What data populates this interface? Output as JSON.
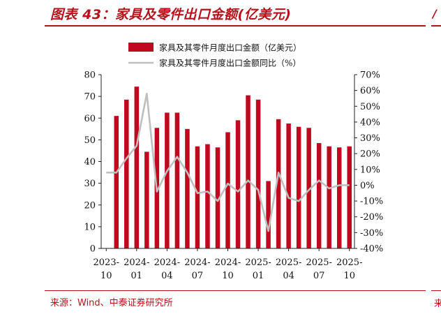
{
  "header": {
    "title": "图表 43：家具及零件出口金额(亿美元)"
  },
  "footer": {
    "source": "来源：Wind、中泰证券研究所"
  },
  "colors": {
    "bar": "#c0081e",
    "line": "#bfbfbf",
    "accent": "#b5121b"
  },
  "chart_data": {
    "type": "bar",
    "title": "图表 43：家具及零件出口金额(亿美元)",
    "legend_position": "top",
    "grid": false,
    "x_tick_labels": [
      [
        "2023-",
        "10"
      ],
      [
        "2024-",
        "01"
      ],
      [
        "2024-",
        "04"
      ],
      [
        "2024-",
        "07"
      ],
      [
        "2024-",
        "10"
      ],
      [
        "2025-",
        "01"
      ],
      [
        "2025-",
        "04"
      ],
      [
        "2025-",
        "07"
      ],
      [
        "2025-",
        "10"
      ]
    ],
    "ylim_left": [
      0,
      80
    ],
    "yticks_left": [
      "0",
      "10",
      "20",
      "30",
      "40",
      "50",
      "60",
      "70",
      "80"
    ],
    "ylim_right": [
      -40,
      70
    ],
    "yticks_right": [
      "-40%",
      "-30%",
      "-20%",
      "-10%",
      "0%",
      "10%",
      "20%",
      "30%",
      "40%",
      "50%",
      "60%",
      "70%"
    ],
    "categories": [
      "2023-10",
      "2023-11",
      "2023-12",
      "2024-01",
      "2024-02",
      "2024-03",
      "2024-04",
      "2024-05",
      "2024-06",
      "2024-07",
      "2024-08",
      "2024-09",
      "2024-10",
      "2024-11",
      "2024-12",
      "2025-01",
      "2025-02",
      "2025-03",
      "2025-04",
      "2025-05",
      "2025-06",
      "2025-07",
      "2025-08",
      "2025-09",
      "2025-10"
    ],
    "series": [
      {
        "name": "家具及其零件月度出口金额（亿美元）",
        "type": "bar",
        "axis": "left",
        "values": [
          null,
          61,
          68.5,
          74.5,
          44.5,
          55.5,
          62.5,
          62.5,
          55,
          47,
          48,
          46.5,
          53.5,
          59,
          70.5,
          68.5,
          31,
          59.5,
          57.5,
          56,
          55.5,
          48.5,
          47,
          46.5,
          47
        ]
      },
      {
        "name": "家具及其零件月度出口金额同比（%）",
        "type": "line",
        "axis": "right",
        "values": [
          8,
          8,
          17,
          25,
          58,
          -4,
          9,
          18,
          8,
          -5,
          -4,
          -10,
          1,
          -4,
          3,
          -3,
          -29,
          8,
          -8,
          -10,
          -3,
          3,
          -2,
          0,
          0
        ]
      }
    ]
  }
}
